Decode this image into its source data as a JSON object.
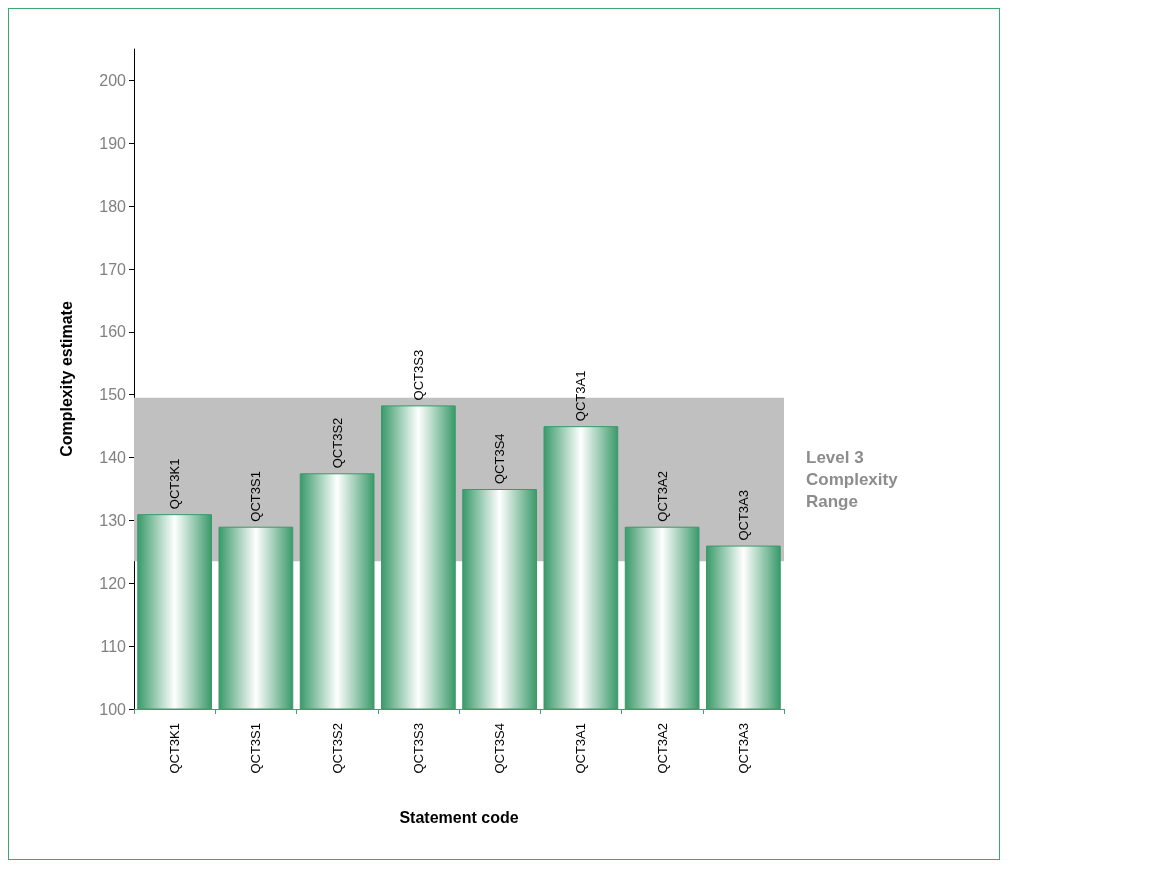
{
  "chart_data": {
    "type": "bar",
    "xlabel": "Statement code",
    "ylabel": "Complexity estimate",
    "categories": [
      "QCT3K1",
      "QCT3S1",
      "QCT3S2",
      "QCT3S3",
      "QCT3S4",
      "QCT3A1",
      "QCT3A2",
      "QCT3A3"
    ],
    "values": [
      131,
      129,
      137.5,
      148.3,
      135,
      145,
      129,
      126
    ],
    "value_labels": [
      "QCT3K1",
      "QCT3S1",
      "QCT3S2",
      "QCT3S3",
      "QCT3S4",
      "QCT3A1",
      "QCT3A2",
      "QCT3A3"
    ],
    "color": "#3a9a6a",
    "ylim": [
      100,
      205
    ],
    "yticks": [
      100,
      110,
      120,
      130,
      140,
      150,
      160,
      170,
      180,
      190,
      200
    ],
    "bands": [
      {
        "axis": "y",
        "from": 123.5,
        "to": 149.5,
        "label": "Level 3 Complexity Range",
        "color": "#c0c0c0"
      }
    ],
    "grid": false
  }
}
